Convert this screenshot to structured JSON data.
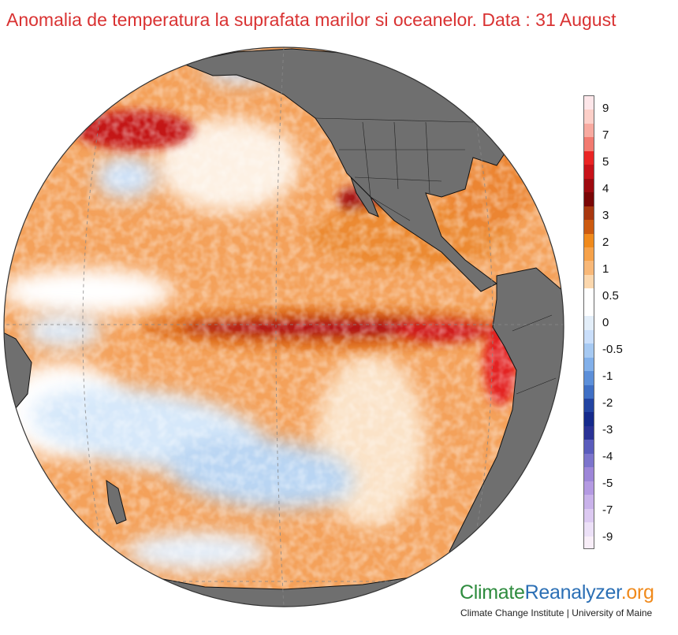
{
  "title": "Anomalia de temperatura la suprafata marilor si oceanelor. Data : 31 August",
  "legend": {
    "labels": [
      "9",
      "7",
      "5",
      "4",
      "3",
      "2",
      "1",
      "0.5",
      "0",
      "-0.5",
      "-1",
      "-2",
      "-3",
      "-4",
      "-5",
      "-7",
      "-9"
    ],
    "colors": [
      "#fde6e9",
      "#fccfc8",
      "#f8aaa0",
      "#f27a70",
      "#ea2424",
      "#c8121a",
      "#9e0a10",
      "#7a0606",
      "#a8370f",
      "#cc5a10",
      "#f08a1c",
      "#f6a24a",
      "#f8b878",
      "#fbd7ad",
      "#ffffff",
      "#ffffff",
      "#e3eef9",
      "#c9defa",
      "#a6c9f2",
      "#82b0ea",
      "#5c8fd9",
      "#3f6fc5",
      "#2344a2",
      "#152a8c",
      "#2a3296",
      "#5a5cbc",
      "#7c74cc",
      "#9d86d8",
      "#b49ae2",
      "#c9b2ea",
      "#dcc9f1",
      "#ece0f7",
      "#f8eef8"
    ]
  },
  "brand": {
    "part1": "Climate",
    "part2": "Reanalyzer",
    "part3": ".org",
    "credit": "Climate Change Institute | University of Maine"
  },
  "map_colors": {
    "land": "#6f6f6f",
    "ocean_base": "#f4a15a",
    "strong_warm": "#c01515",
    "hot": "#e32020",
    "warm_mid": "#e0701f",
    "neutral": "#ffffff",
    "cool": "#a9cdf0",
    "cool_light": "#d6e8fa"
  }
}
